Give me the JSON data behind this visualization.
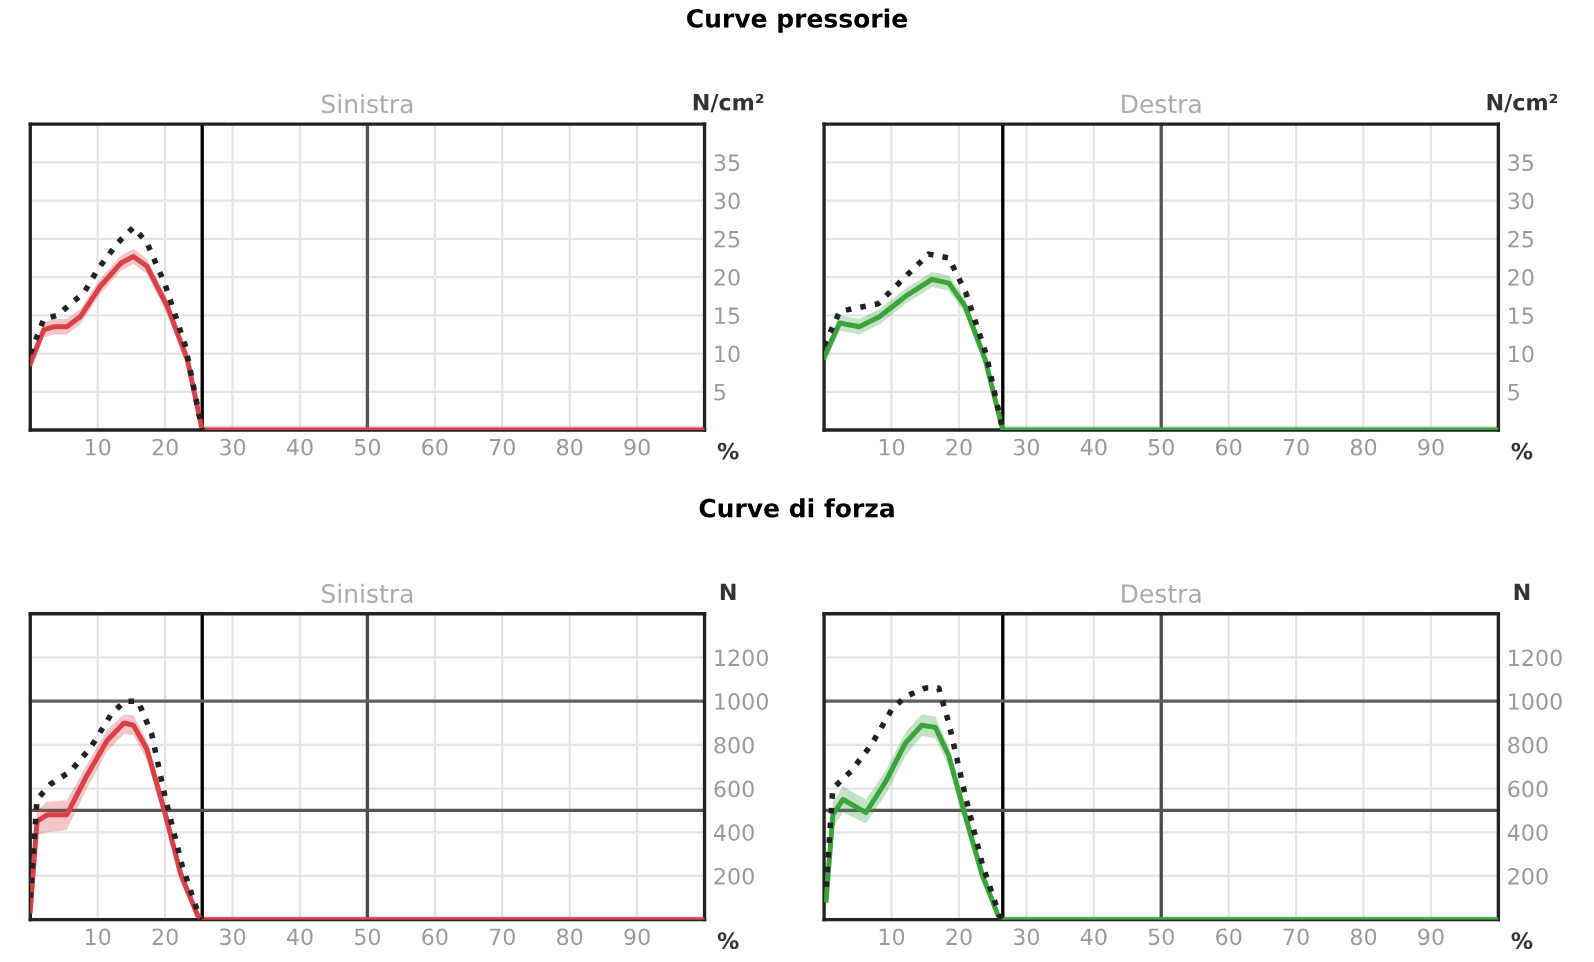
{
  "chart_data": [
    {
      "type": "line",
      "title": "Curve pressorie",
      "subtitle": "Sinistra",
      "ylabel": "N/cm²",
      "xlabel": "%",
      "xlim": [
        0,
        100
      ],
      "xticks": [
        10,
        20,
        30,
        40,
        50,
        60,
        70,
        80,
        90
      ],
      "ylim": [
        0,
        40
      ],
      "yticks": [
        5,
        10,
        15,
        20,
        25,
        30,
        35
      ],
      "grid": true,
      "legend": false,
      "ref_lines": [
        {
          "axis": "x",
          "value": 25.5,
          "color": "#000000"
        },
        {
          "axis": "x",
          "value": 50,
          "color": "#555555"
        }
      ],
      "series": [
        {
          "color": "#d9414a",
          "line_style": "solid",
          "x": [
            0,
            2,
            3.5,
            5.4,
            7.4,
            10.4,
            13.4,
            15.3,
            17.3,
            20.3,
            23.3,
            25.5,
            100
          ],
          "values": [
            8.7,
            13.1,
            13.5,
            13.5,
            14.8,
            18.8,
            21.8,
            22.7,
            21.4,
            16.2,
            9.2,
            0,
            0
          ],
          "lower": [
            7.7,
            12.1,
            12.5,
            12.5,
            13.8,
            17.8,
            20.8,
            21.7,
            20.4,
            15.2,
            8.2,
            0,
            0
          ],
          "upper": [
            9.7,
            14.1,
            14.5,
            14.5,
            15.8,
            19.8,
            22.8,
            23.7,
            22.4,
            17.2,
            10.2,
            0.5,
            0.5
          ]
        },
        {
          "color": "#222222",
          "line_style": "dotted",
          "x": [
            0,
            2,
            4,
            6,
            8,
            10,
            13,
            15.3,
            17.3,
            20,
            23,
            25.5
          ],
          "values": [
            10,
            14.5,
            15,
            16.5,
            18,
            21,
            24.5,
            26.5,
            24.5,
            19,
            11,
            0
          ]
        }
      ]
    },
    {
      "type": "line",
      "subtitle": "Destra",
      "ylabel": "N/cm²",
      "xlabel": "%",
      "xlim": [
        0,
        100
      ],
      "xticks": [
        10,
        20,
        30,
        40,
        50,
        60,
        70,
        80,
        90
      ],
      "ylim": [
        0,
        40
      ],
      "yticks": [
        5,
        10,
        15,
        20,
        25,
        30,
        35
      ],
      "grid": true,
      "legend": false,
      "ref_lines": [
        {
          "axis": "x",
          "value": 26.5,
          "color": "#000000"
        },
        {
          "axis": "x",
          "value": 50,
          "color": "#555555"
        }
      ],
      "series": [
        {
          "color": "#3aa33a",
          "line_style": "solid",
          "x": [
            0,
            2.3,
            5.2,
            8.2,
            12.1,
            16,
            18.5,
            20.9,
            23.9,
            26.5,
            100
          ],
          "values": [
            9.5,
            14,
            13.5,
            14.8,
            17.5,
            19.7,
            19.2,
            16.2,
            9.2,
            0,
            0
          ],
          "lower": [
            8.5,
            13,
            12.5,
            13.8,
            16.5,
            18.7,
            18.2,
            15.2,
            8.2,
            0,
            0
          ],
          "upper": [
            10.5,
            15,
            14.5,
            15.8,
            18.5,
            20.7,
            20.2,
            17.2,
            10.2,
            0.5,
            0.5
          ]
        },
        {
          "color": "#222222",
          "line_style": "dotted",
          "x": [
            0,
            2.3,
            5,
            8,
            12,
            15.5,
            18.5,
            21,
            24,
            26.5
          ],
          "values": [
            11,
            15.5,
            16,
            16.5,
            20,
            23,
            22.5,
            18,
            10,
            0
          ]
        }
      ]
    },
    {
      "type": "line",
      "title": "Curve di forza",
      "subtitle": "Sinistra",
      "ylabel": "N",
      "xlabel": "%",
      "xlim": [
        0,
        100
      ],
      "xticks": [
        10,
        20,
        30,
        40,
        50,
        60,
        70,
        80,
        90
      ],
      "ylim": [
        0,
        1400
      ],
      "yticks": [
        200,
        400,
        600,
        800,
        1000,
        1200
      ],
      "grid": true,
      "legend": false,
      "ref_lines": [
        {
          "axis": "x",
          "value": 25.5,
          "color": "#000000"
        },
        {
          "axis": "x",
          "value": 50,
          "color": "#4a4a4a"
        },
        {
          "axis": "y",
          "value": 500,
          "color": "#555555"
        },
        {
          "axis": "y",
          "value": 1000,
          "color": "#606060"
        }
      ],
      "series": [
        {
          "color": "#d9414a",
          "line_style": "solid",
          "x": [
            0,
            1,
            2.5,
            5.4,
            8.4,
            11.4,
            13.9,
            15.3,
            17.3,
            19.8,
            22.3,
            24.8,
            25.5,
            100
          ],
          "values": [
            40,
            450,
            480,
            480,
            660,
            820,
            900,
            890,
            780,
            510,
            210,
            20,
            0,
            0
          ],
          "lower": [
            0,
            390,
            400,
            410,
            600,
            770,
            850,
            845,
            730,
            460,
            170,
            0,
            0,
            0
          ],
          "upper": [
            90,
            500,
            540,
            545,
            710,
            870,
            940,
            935,
            820,
            550,
            250,
            30,
            15,
            15
          ]
        },
        {
          "color": "#222222",
          "line_style": "dotted",
          "x": [
            0,
            1,
            3,
            6,
            9,
            12,
            14,
            16,
            18,
            20,
            22.5,
            25,
            25.5
          ],
          "values": [
            100,
            550,
            620,
            680,
            790,
            940,
            1000,
            1000,
            850,
            560,
            250,
            20,
            0
          ]
        }
      ]
    },
    {
      "type": "line",
      "subtitle": "Destra",
      "ylabel": "N",
      "xlabel": "%",
      "xlim": [
        0,
        100
      ],
      "xticks": [
        10,
        20,
        30,
        40,
        50,
        60,
        70,
        80,
        90
      ],
      "ylim": [
        0,
        1400
      ],
      "yticks": [
        200,
        400,
        600,
        800,
        1000,
        1200
      ],
      "grid": true,
      "legend": false,
      "ref_lines": [
        {
          "axis": "x",
          "value": 26.5,
          "color": "#000000"
        },
        {
          "axis": "x",
          "value": 50,
          "color": "#4a4a4a"
        },
        {
          "axis": "y",
          "value": 500,
          "color": "#555555"
        },
        {
          "axis": "y",
          "value": 1000,
          "color": "#606060"
        }
      ],
      "series": [
        {
          "color": "#3aa33a",
          "line_style": "solid",
          "x": [
            0.3,
            1.3,
            2.8,
            6.2,
            9.1,
            12.1,
            14.5,
            16.5,
            18.5,
            20.9,
            23.4,
            25.8,
            26.5,
            100
          ],
          "values": [
            90,
            480,
            550,
            490,
            630,
            810,
            890,
            880,
            750,
            480,
            210,
            20,
            0,
            0
          ],
          "lower": [
            40,
            420,
            490,
            440,
            570,
            750,
            840,
            830,
            700,
            430,
            170,
            0,
            0,
            0
          ],
          "upper": [
            140,
            540,
            610,
            550,
            680,
            860,
            940,
            930,
            790,
            520,
            250,
            30,
            15,
            15
          ]
        },
        {
          "color": "#222222",
          "line_style": "dotted",
          "x": [
            0.3,
            1.3,
            4,
            7,
            10,
            12,
            15,
            17,
            18.5,
            21,
            23.5,
            26,
            26.5
          ],
          "values": [
            150,
            600,
            680,
            800,
            960,
            1020,
            1060,
            1060,
            900,
            560,
            250,
            20,
            0
          ]
        }
      ]
    }
  ]
}
